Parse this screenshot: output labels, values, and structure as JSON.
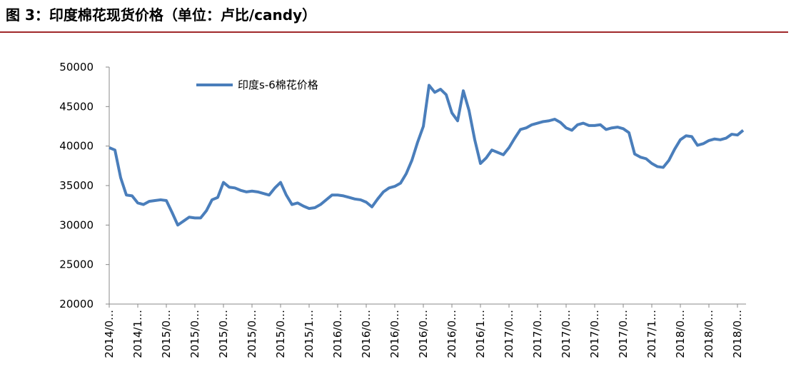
{
  "chart_data": {
    "type": "line",
    "title": "图 3：印度棉花现货价格（单位：卢比/candy）",
    "categories": [
      "2014/0…",
      null,
      null,
      null,
      null,
      "2014/1…",
      null,
      null,
      null,
      null,
      "2015/0…",
      null,
      null,
      null,
      null,
      "2015/0…",
      null,
      null,
      null,
      null,
      "2015/0…",
      null,
      null,
      null,
      null,
      "2015/0…",
      null,
      null,
      null,
      null,
      "2015/0…",
      null,
      null,
      null,
      null,
      "2015/1…",
      null,
      null,
      null,
      null,
      "2016/0…",
      null,
      null,
      null,
      null,
      "2016/0…",
      null,
      null,
      null,
      null,
      "2016/0…",
      null,
      null,
      null,
      null,
      "2016/0…",
      null,
      null,
      null,
      null,
      "2016/0…",
      null,
      null,
      null,
      null,
      "2016/1…",
      null,
      null,
      null,
      null,
      "2017/0…",
      null,
      null,
      null,
      null,
      "2017/0…",
      null,
      null,
      null,
      null,
      "2017/0…",
      null,
      null,
      null,
      null,
      "2017/0…",
      null,
      null,
      null,
      null,
      "2017/0…",
      null,
      null,
      null,
      null,
      "2017/1…",
      null,
      null,
      null,
      null,
      "2018/0…",
      null,
      null,
      null,
      null,
      "2018/0…",
      null,
      null,
      null,
      null,
      "2018/0…",
      null
    ],
    "series": [
      {
        "name": "印度s-6棉花价格",
        "color": "#4a7ebb",
        "values": [
          39800,
          39500,
          36000,
          33800,
          33700,
          32800,
          32600,
          33000,
          33100,
          33200,
          33100,
          31600,
          30000,
          30500,
          31000,
          30900,
          30900,
          31800,
          33200,
          33500,
          35400,
          34800,
          34700,
          34400,
          34200,
          34300,
          34200,
          34000,
          33800,
          34700,
          35400,
          33800,
          32600,
          32800,
          32400,
          32100,
          32200,
          32600,
          33200,
          33800,
          33800,
          33700,
          33500,
          33300,
          33200,
          32900,
          32300,
          33300,
          34200,
          34700,
          34900,
          35300,
          36500,
          38200,
          40500,
          42500,
          47700,
          46800,
          47200,
          46500,
          44200,
          43200,
          47000,
          44500,
          40800,
          37800,
          38500,
          39500,
          39200,
          38900,
          39800,
          41000,
          42100,
          42300,
          42700,
          42900,
          43100,
          43200,
          43400,
          43000,
          42300,
          42000,
          42700,
          42900,
          42600,
          42600,
          42700,
          42100,
          42300,
          42400,
          42200,
          41700,
          39000,
          38600,
          38400,
          37800,
          37400,
          37300,
          38200,
          39600,
          40800,
          41300,
          41200,
          40100,
          40300,
          40700,
          40900,
          40800,
          41000,
          41500,
          41400,
          42000
        ]
      }
    ],
    "ylim": [
      20000,
      50000
    ],
    "yticks": [
      20000,
      25000,
      30000,
      35000,
      40000,
      45000,
      50000
    ],
    "grid": false
  }
}
